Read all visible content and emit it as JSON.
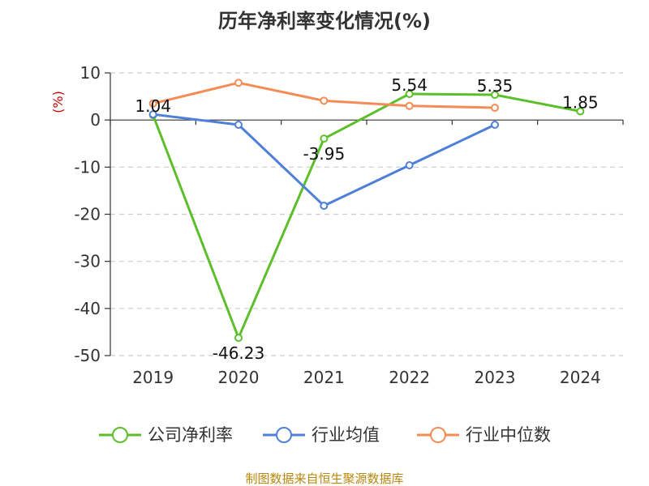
{
  "chart_data": {
    "type": "line",
    "title": "历年净利率变化情况(%)",
    "ylabel": "(%)",
    "categories": [
      "2019",
      "2020",
      "2021",
      "2022",
      "2023",
      "2024"
    ],
    "ylim": [
      -50,
      10
    ],
    "yticks": [
      10,
      0,
      -10,
      -20,
      -30,
      -40,
      -50
    ],
    "grid": true,
    "legend_position": "bottom",
    "series": [
      {
        "name": "公司净利率",
        "color": "#5cbf2a",
        "values": [
          1.04,
          -46.23,
          -3.95,
          5.54,
          5.35,
          1.85
        ],
        "labels": [
          "1.04",
          "-46.23",
          "-3.95",
          "5.54",
          "5.35",
          "1.85"
        ]
      },
      {
        "name": "行业均值",
        "color": "#4f7fd6",
        "values": [
          1.2,
          -1.0,
          -18.2,
          -9.6,
          -1.0,
          null
        ]
      },
      {
        "name": "行业中位数",
        "color": "#f58c55",
        "values": [
          3.5,
          7.9,
          4.1,
          3.0,
          2.6,
          null
        ]
      }
    ]
  },
  "footer": {
    "source": "制图数据来自恒生聚源数据库"
  }
}
